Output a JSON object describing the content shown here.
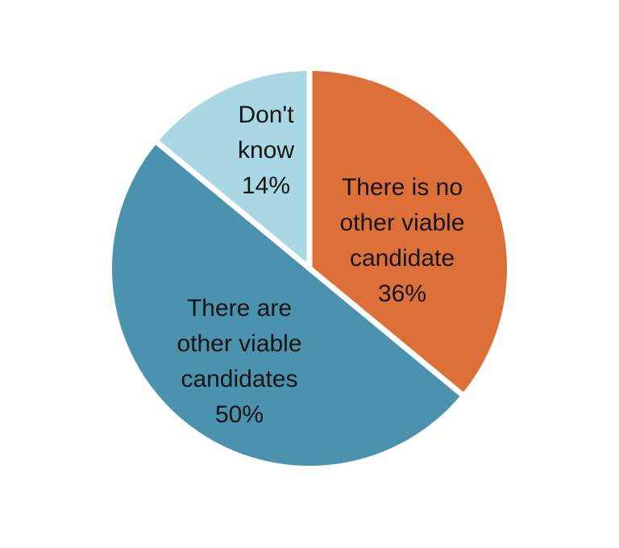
{
  "page": {
    "background_color": "#ffffff",
    "text_color": "#141414"
  },
  "chart_data": {
    "type": "pie",
    "title": "",
    "legend_position": "none",
    "labels_position": "inside",
    "start_angle_deg": 0,
    "direction": "clockwise",
    "separator_color": "#ffffff",
    "slices": [
      {
        "label": "There is no other viable candidate",
        "lines": [
          "There is no",
          "other viable",
          "candidate"
        ],
        "value": 36,
        "display": "36%",
        "color": "#dd7039"
      },
      {
        "label": "There are other viable candidates",
        "lines": [
          "There are",
          "other viable",
          "candidates"
        ],
        "value": 50,
        "display": "50%",
        "color": "#4a92ae"
      },
      {
        "label": "Don't know",
        "lines": [
          "Don't",
          "know"
        ],
        "value": 14,
        "display": "14%",
        "color": "#a9d8e4"
      }
    ]
  }
}
